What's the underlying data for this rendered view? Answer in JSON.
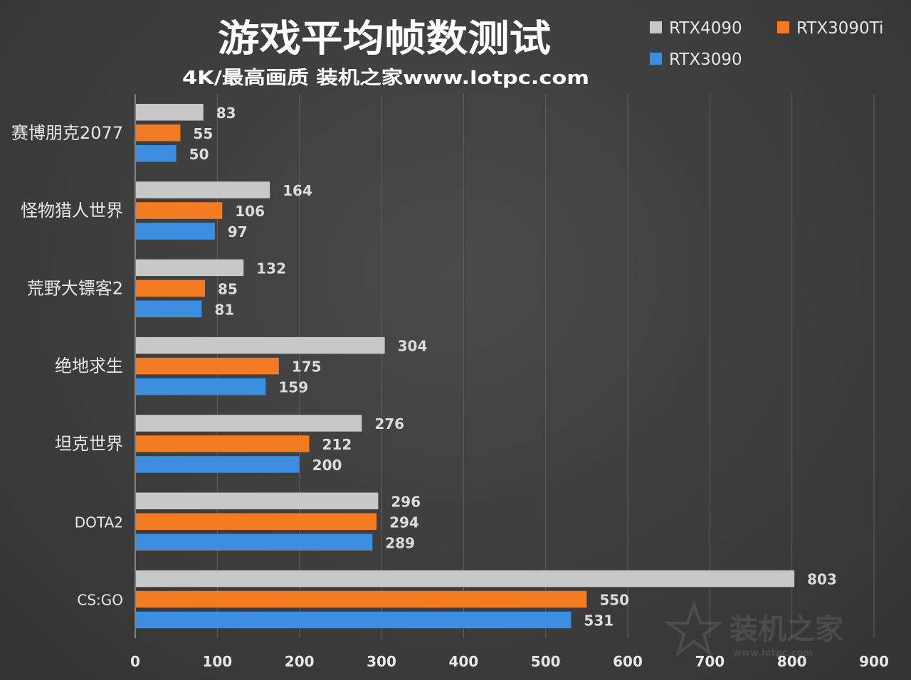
{
  "chart_data": {
    "type": "bar",
    "orientation": "horizontal",
    "title": "游戏平均帧数测试",
    "subtitle": "4K/最高画质 装机之家www.lotpc.com",
    "categories": [
      "赛博朋克2077",
      "怪物猎人世界",
      "荒野大镖客2",
      "绝地求生",
      "坦克世界",
      "DOTA2",
      "CS:GO"
    ],
    "series": [
      {
        "name": "RTX4090",
        "color": "#c8c8c8",
        "values": [
          83,
          164,
          132,
          304,
          276,
          296,
          803
        ]
      },
      {
        "name": "RTX3090Ti",
        "color": "#f47b22",
        "values": [
          55,
          106,
          85,
          175,
          212,
          294,
          550
        ]
      },
      {
        "name": "RTX3090",
        "color": "#3d8ee0",
        "values": [
          50,
          97,
          81,
          159,
          200,
          289,
          531
        ]
      }
    ],
    "xlim": [
      0,
      900
    ],
    "xticks": [
      0,
      100,
      200,
      300,
      400,
      500,
      600,
      700,
      800,
      900
    ],
    "xlabel": "",
    "ylabel": "",
    "grid": true,
    "legend_position": "top-right",
    "data_labels": true
  },
  "watermark": {
    "text": "装机之家",
    "url": "www.lotpc.com"
  }
}
